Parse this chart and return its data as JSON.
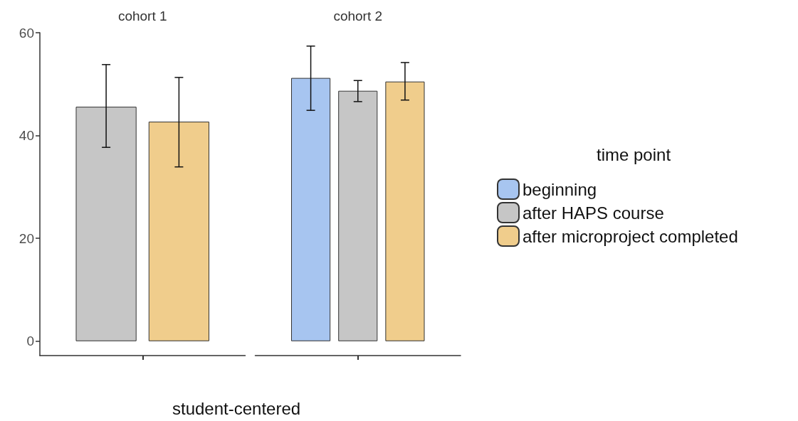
{
  "chart_data": {
    "type": "bar",
    "xlabel": "student-centered",
    "categories": [
      "cohort 1",
      "cohort 2"
    ],
    "ylim": [
      -2.8,
      60
    ],
    "yticks": [
      0,
      20,
      40,
      60
    ],
    "grid": false,
    "legend": "right",
    "legend_title": "time point",
    "series": [
      {
        "name": "beginning",
        "color": "#a7c5f0",
        "values": [
          null,
          51.2
        ],
        "errors": [
          null,
          [
            44.9,
            57.4
          ]
        ]
      },
      {
        "name": "after HAPS course",
        "color": "#c6c6c6",
        "values": [
          45.6,
          48.7
        ],
        "errors": [
          [
            37.7,
            53.8
          ],
          [
            46.6,
            50.7
          ]
        ]
      },
      {
        "name": "after microproject completed",
        "color": "#f0cd8c",
        "values": [
          42.7,
          50.5
        ],
        "errors": [
          [
            33.9,
            51.3
          ],
          [
            46.9,
            54.2
          ]
        ]
      }
    ]
  }
}
